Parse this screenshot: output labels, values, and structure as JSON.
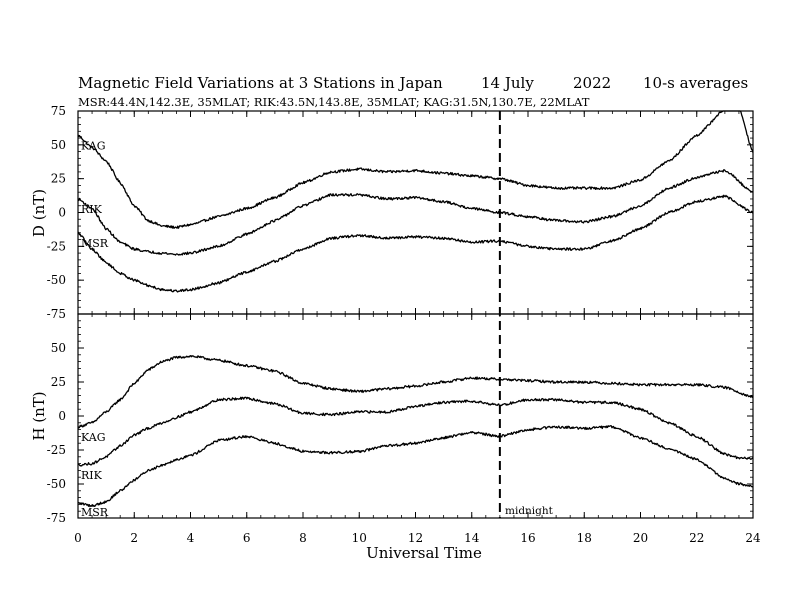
{
  "header": {
    "title": "Magnetic Field Variations at 3 Stations in Japan",
    "date": "14 July",
    "year": "2022",
    "averaging": "10-s averages",
    "subtitle": "MSR:44.4N,142.3E, 35MLAT;  RIK:43.5N,143.8E, 35MLAT;  KAG:31.5N,130.7E, 22MLAT"
  },
  "x_axis": {
    "label": "Universal Time",
    "range": [
      0,
      24
    ],
    "ticks": [
      "0",
      "2",
      "4",
      "6",
      "8",
      "10",
      "12",
      "14",
      "16",
      "18",
      "20",
      "22",
      "24"
    ]
  },
  "annotation": {
    "label": "midnight",
    "x": 15
  },
  "chart_data": [
    {
      "type": "line",
      "ylabel": "D (nT)",
      "ylim": [
        -75,
        75
      ],
      "yticks": [
        "75",
        "50",
        "25",
        "0",
        "-25",
        "-50",
        "-75"
      ],
      "series": [
        {
          "name": "KAG",
          "x": [
            0,
            0.5,
            1,
            1.5,
            2,
            2.5,
            3,
            3.5,
            4,
            5,
            6,
            7,
            8,
            9,
            10,
            11,
            12,
            13,
            14,
            15,
            16,
            17,
            18,
            19,
            20,
            21,
            22,
            23,
            23.5,
            24
          ],
          "values": [
            57,
            48,
            38,
            22,
            5,
            -6,
            -10,
            -11,
            -9,
            -3,
            3,
            11,
            22,
            30,
            32,
            30,
            31,
            29,
            27,
            25,
            20,
            18,
            18,
            18,
            24,
            38,
            57,
            76,
            77,
            45
          ]
        },
        {
          "name": "RIK",
          "x": [
            0,
            0.5,
            1,
            1.5,
            2,
            2.5,
            3,
            3.5,
            4,
            5,
            6,
            7,
            8,
            9,
            10,
            11,
            12,
            13,
            14,
            15,
            16,
            17,
            18,
            19,
            20,
            21,
            22,
            23,
            24
          ],
          "values": [
            10,
            3,
            -12,
            -22,
            -27,
            -29,
            -30,
            -31,
            -30,
            -25,
            -16,
            -6,
            5,
            13,
            13,
            10,
            11,
            8,
            3,
            0,
            -3,
            -6,
            -7,
            -3,
            5,
            18,
            26,
            31,
            15
          ]
        },
        {
          "name": "MSR",
          "x": [
            0,
            0.5,
            1,
            1.5,
            2,
            2.5,
            3,
            3.5,
            4,
            5,
            6,
            7,
            8,
            9,
            10,
            11,
            12,
            13,
            14,
            15,
            16,
            17,
            18,
            19,
            20,
            21,
            22,
            23,
            24
          ],
          "values": [
            -15,
            -27,
            -37,
            -45,
            -50,
            -54,
            -57,
            -58,
            -57,
            -52,
            -44,
            -36,
            -27,
            -19,
            -17,
            -19,
            -18,
            -19,
            -22,
            -21,
            -25,
            -27,
            -27,
            -21,
            -12,
            0,
            8,
            12,
            0
          ]
        }
      ]
    },
    {
      "type": "line",
      "ylabel": "H (nT)",
      "ylim": [
        -75,
        75
      ],
      "yticks": [
        "",
        "50",
        "25",
        "0",
        "-25",
        "-50",
        "-75"
      ],
      "series": [
        {
          "name": "KAG",
          "x": [
            0,
            0.5,
            1,
            1.5,
            2,
            2.5,
            3,
            3.5,
            4,
            5,
            6,
            7,
            8,
            9,
            10,
            11,
            12,
            13,
            14,
            15,
            16,
            17,
            18,
            19,
            20,
            21,
            22,
            23,
            24
          ],
          "values": [
            -8,
            -5,
            3,
            12,
            24,
            34,
            40,
            43,
            44,
            41,
            37,
            33,
            24,
            20,
            18,
            20,
            22,
            25,
            28,
            27,
            26,
            25,
            25,
            24,
            23,
            23,
            23,
            21,
            14
          ]
        },
        {
          "name": "RIK",
          "x": [
            0,
            0.5,
            1,
            1.5,
            2,
            2.5,
            3,
            3.5,
            4,
            5,
            6,
            7,
            8,
            9,
            10,
            11,
            12,
            13,
            14,
            15,
            16,
            17,
            18,
            19,
            20,
            21,
            22,
            23,
            23.5,
            24
          ],
          "values": [
            -36,
            -35,
            -30,
            -22,
            -14,
            -9,
            -5,
            -1,
            3,
            12,
            13,
            9,
            2,
            1,
            3,
            3,
            7,
            10,
            11,
            8,
            12,
            12,
            10,
            10,
            5,
            -5,
            -15,
            -28,
            -31,
            -31
          ]
        },
        {
          "name": "MSR",
          "x": [
            0,
            0.5,
            1,
            1.5,
            2,
            2.5,
            3,
            3.5,
            4,
            5,
            6,
            7,
            8,
            9,
            10,
            11,
            12,
            13,
            14,
            15,
            16,
            17,
            18,
            19,
            20,
            21,
            22,
            23,
            23.5,
            24
          ],
          "values": [
            -64,
            -66,
            -63,
            -55,
            -47,
            -40,
            -36,
            -32,
            -29,
            -18,
            -15,
            -20,
            -26,
            -27,
            -26,
            -22,
            -20,
            -16,
            -12,
            -15,
            -10,
            -8,
            -9,
            -8,
            -16,
            -24,
            -32,
            -46,
            -50,
            -52
          ]
        }
      ]
    }
  ]
}
